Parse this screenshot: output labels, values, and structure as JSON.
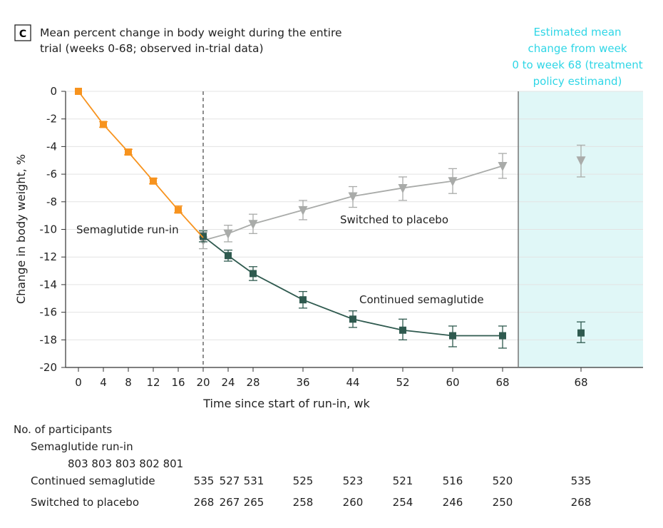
{
  "panel_label": "C",
  "chart_data": {
    "type": "line",
    "title": "Mean percent change in body weight during the entire trial (weeks 0-68; observed in-trial data)",
    "title_lines": [
      "Mean percent change in body weight during the entire",
      "trial (weeks 0-68; observed in-trial data)"
    ],
    "xlabel": "Time since start of run-in, wk",
    "ylabel": "Change in body weight, %",
    "ylim": [
      -20,
      0
    ],
    "yticks": [
      0,
      -2,
      -4,
      -6,
      -8,
      -10,
      -12,
      -14,
      -16,
      -18,
      -20
    ],
    "xticks": [
      0,
      4,
      8,
      12,
      16,
      20,
      24,
      28,
      36,
      44,
      52,
      60,
      68
    ],
    "divider_week": 20,
    "colors": {
      "run_in": "#f7931e",
      "continued": "#2f5a4f",
      "placebo": "#a9aba9",
      "panel": "#e0f7f7",
      "panel_text": "#2fd6e6"
    },
    "series": [
      {
        "name": "Semaglutide run-in",
        "marker": "square",
        "x": [
          0,
          4,
          8,
          12,
          16,
          20
        ],
        "y": [
          0,
          -2.4,
          -4.4,
          -6.5,
          -8.6,
          -10.6
        ],
        "err_lo": [
          0,
          -2.6,
          -4.6,
          -6.7,
          -8.8,
          -10.8
        ],
        "err_hi": [
          0,
          -2.2,
          -4.2,
          -6.3,
          -8.3,
          -10.3
        ],
        "show_markers": [
          true,
          true,
          true,
          true,
          true,
          false
        ]
      },
      {
        "name": "Continued semaglutide",
        "marker": "square",
        "x": [
          20,
          24,
          28,
          36,
          44,
          52,
          60,
          68
        ],
        "y": [
          -10.5,
          -11.9,
          -13.2,
          -15.1,
          -16.5,
          -17.3,
          -17.7,
          -17.7
        ],
        "err_lo": [
          -10.9,
          -12.3,
          -13.7,
          -15.7,
          -17.1,
          -18.0,
          -18.5,
          -18.6
        ],
        "err_hi": [
          -10.1,
          -11.5,
          -12.7,
          -14.5,
          -15.9,
          -16.5,
          -17.0,
          -17.0
        ]
      },
      {
        "name": "Switched to placebo",
        "marker": "triangle-down",
        "x": [
          20,
          24,
          28,
          36,
          44,
          52,
          60,
          68
        ],
        "y": [
          -10.8,
          -10.3,
          -9.6,
          -8.6,
          -7.6,
          -7.0,
          -6.5,
          -5.4
        ],
        "err_lo": [
          -11.4,
          -10.9,
          -10.3,
          -9.3,
          -8.4,
          -7.9,
          -7.4,
          -6.3
        ],
        "err_hi": [
          -10.2,
          -9.7,
          -8.9,
          -7.9,
          -6.9,
          -6.2,
          -5.6,
          -4.5
        ]
      }
    ],
    "estimand_panel": {
      "title": "Estimated mean change from week 0 to week 68 (treatment policy estimand)",
      "title_lines": [
        "Estimated mean",
        "change from week",
        "0 to week 68 (treatment",
        "policy estimand)"
      ],
      "x_tick": "68",
      "points": [
        {
          "series": "Switched to placebo",
          "marker": "triangle-down",
          "y": -5.0,
          "err_lo": -6.2,
          "err_hi": -3.9
        },
        {
          "series": "Continued semaglutide",
          "marker": "square",
          "y": -17.5,
          "err_lo": -18.2,
          "err_hi": -16.7
        }
      ]
    },
    "annotations": [
      {
        "text": "Semaglutide run-in",
        "series": "Semaglutide run-in"
      },
      {
        "text": "Switched to placebo",
        "series": "Switched to placebo"
      },
      {
        "text": "Continued semaglutide",
        "series": "Continued semaglutide"
      }
    ],
    "participants": {
      "heading": "No. of participants",
      "rows": [
        {
          "label": "Semaglutide run-in",
          "weeks": [
            0,
            4,
            8,
            12,
            16
          ],
          "values": [
            "803",
            "803",
            "803",
            "802",
            "801"
          ]
        },
        {
          "label": "Continued semaglutide",
          "weeks": [
            20,
            24,
            28,
            36,
            44,
            52,
            60,
            68
          ],
          "values": [
            "535",
            "527",
            "531",
            "525",
            "523",
            "521",
            "516",
            "520"
          ],
          "panel_value": "535"
        },
        {
          "label": "Switched to placebo",
          "weeks": [
            20,
            24,
            28,
            36,
            44,
            52,
            60,
            68
          ],
          "values": [
            "268",
            "267",
            "265",
            "258",
            "260",
            "254",
            "246",
            "250"
          ],
          "panel_value": "268"
        }
      ]
    }
  }
}
